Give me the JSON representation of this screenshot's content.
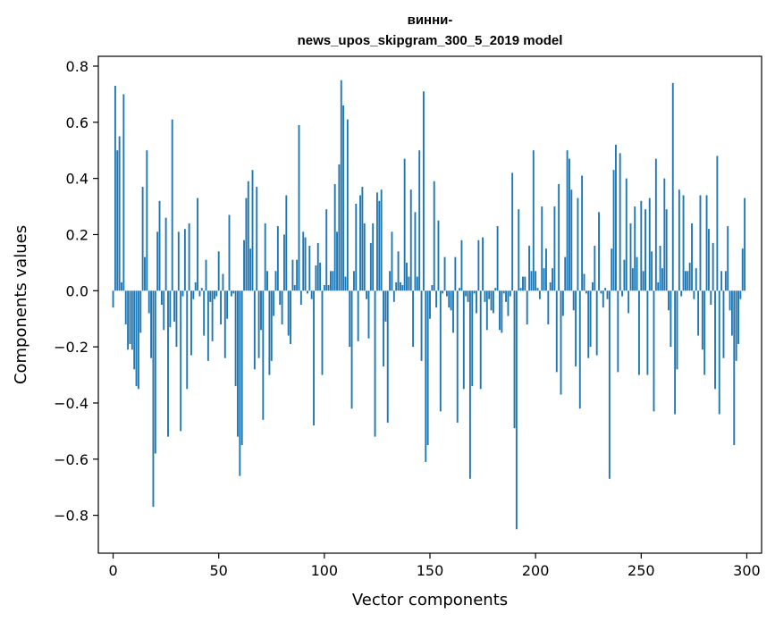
{
  "chart_data": {
    "type": "bar",
    "title_lines": [
      "винни-",
      "news_upos_skipgram_300_5_2019 model"
    ],
    "xlabel": "Vector components",
    "ylabel": "Components values",
    "xlim": [
      -7,
      307
    ],
    "ylim": [
      -0.935,
      0.835
    ],
    "xticks": [
      0,
      50,
      100,
      150,
      200,
      250,
      300
    ],
    "xtick_labels": [
      "0",
      "50",
      "100",
      "150",
      "200",
      "250",
      "300"
    ],
    "yticks": [
      -0.8,
      -0.6,
      -0.4,
      -0.2,
      0.0,
      0.2,
      0.4,
      0.6,
      0.8
    ],
    "ytick_labels": [
      "−0.8",
      "−0.6",
      "−0.4",
      "−0.2",
      "0.0",
      "0.2",
      "0.4",
      "0.6",
      "0.8"
    ],
    "grid": false,
    "bar_color": "#1f77b4",
    "x": [
      0,
      1,
      2,
      3,
      4,
      5,
      6,
      7,
      8,
      9,
      10,
      11,
      12,
      13,
      14,
      15,
      16,
      17,
      18,
      19,
      20,
      21,
      22,
      23,
      24,
      25,
      26,
      27,
      28,
      29,
      30,
      31,
      32,
      33,
      34,
      35,
      36,
      37,
      38,
      39,
      40,
      41,
      42,
      43,
      44,
      45,
      46,
      47,
      48,
      49,
      50,
      51,
      52,
      53,
      54,
      55,
      56,
      57,
      58,
      59,
      60,
      61,
      62,
      63,
      64,
      65,
      66,
      67,
      68,
      69,
      70,
      71,
      72,
      73,
      74,
      75,
      76,
      77,
      78,
      79,
      80,
      81,
      82,
      83,
      84,
      85,
      86,
      87,
      88,
      89,
      90,
      91,
      92,
      93,
      94,
      95,
      96,
      97,
      98,
      99,
      100,
      101,
      102,
      103,
      104,
      105,
      106,
      107,
      108,
      109,
      110,
      111,
      112,
      113,
      114,
      115,
      116,
      117,
      118,
      119,
      120,
      121,
      122,
      123,
      124,
      125,
      126,
      127,
      128,
      129,
      130,
      131,
      132,
      133,
      134,
      135,
      136,
      137,
      138,
      139,
      140,
      141,
      142,
      143,
      144,
      145,
      146,
      147,
      148,
      149,
      150,
      151,
      152,
      153,
      154,
      155,
      156,
      157,
      158,
      159,
      160,
      161,
      162,
      163,
      164,
      165,
      166,
      167,
      168,
      169,
      170,
      171,
      172,
      173,
      174,
      175,
      176,
      177,
      178,
      179,
      180,
      181,
      182,
      183,
      184,
      185,
      186,
      187,
      188,
      189,
      190,
      191,
      192,
      193,
      194,
      195,
      196,
      197,
      198,
      199,
      200,
      201,
      202,
      203,
      204,
      205,
      206,
      207,
      208,
      209,
      210,
      211,
      212,
      213,
      214,
      215,
      216,
      217,
      218,
      219,
      220,
      221,
      222,
      223,
      224,
      225,
      226,
      227,
      228,
      229,
      230,
      231,
      232,
      233,
      234,
      235,
      236,
      237,
      238,
      239,
      240,
      241,
      242,
      243,
      244,
      245,
      246,
      247,
      248,
      249,
      250,
      251,
      252,
      253,
      254,
      255,
      256,
      257,
      258,
      259,
      260,
      261,
      262,
      263,
      264,
      265,
      266,
      267,
      268,
      269,
      270,
      271,
      272,
      273,
      274,
      275,
      276,
      277,
      278,
      279,
      280,
      281,
      282,
      283,
      284,
      285,
      286,
      287,
      288,
      289,
      290,
      291,
      292,
      293,
      294,
      295,
      296,
      297,
      298,
      299
    ],
    "values": [
      -0.06,
      0.73,
      0.5,
      0.55,
      0.03,
      0.7,
      -0.12,
      -0.21,
      -0.19,
      -0.21,
      -0.28,
      -0.34,
      -0.35,
      -0.15,
      0.37,
      0.12,
      0.5,
      -0.08,
      -0.24,
      -0.77,
      -0.58,
      0.21,
      0.32,
      -0.05,
      -0.14,
      0.26,
      -0.52,
      -0.13,
      0.61,
      -0.11,
      -0.2,
      0.21,
      -0.5,
      -0.02,
      0.22,
      -0.35,
      0.24,
      -0.23,
      -0.03,
      0.03,
      0.33,
      -0.02,
      0.01,
      -0.16,
      0.11,
      -0.25,
      -0.04,
      -0.18,
      -0.03,
      -0.02,
      0.14,
      -0.12,
      0.06,
      -0.24,
      -0.1,
      0.27,
      -0.02,
      -0.01,
      -0.34,
      -0.52,
      -0.66,
      -0.55,
      0.18,
      0.33,
      0.39,
      0.15,
      0.43,
      -0.28,
      0.37,
      -0.24,
      -0.14,
      -0.46,
      0.24,
      0.07,
      -0.3,
      -0.25,
      -0.09,
      0.07,
      0.23,
      -0.05,
      -0.12,
      0.2,
      0.34,
      -0.16,
      -0.19,
      0.11,
      0.02,
      0.11,
      0.59,
      -0.05,
      0.21,
      0.19,
      -0.01,
      0.16,
      -0.03,
      -0.48,
      0.09,
      0.17,
      0.1,
      -0.3,
      0.02,
      0.29,
      0.02,
      0.07,
      0.07,
      0.38,
      0.21,
      0.45,
      0.75,
      0.66,
      0.05,
      0.61,
      -0.2,
      -0.42,
      0.07,
      0.31,
      -0.18,
      0.34,
      0.37,
      0.24,
      -0.03,
      -0.17,
      0.17,
      0.24,
      -0.52,
      0.35,
      0.32,
      0.36,
      -0.27,
      -0.11,
      -0.47,
      0.07,
      0.21,
      -0.04,
      0.03,
      0.14,
      0.03,
      0.02,
      0.47,
      0.1,
      0.05,
      0.36,
      -0.2,
      0.28,
      0.05,
      0.5,
      -0.25,
      0.71,
      -0.61,
      -0.55,
      -0.1,
      0.02,
      0.39,
      -0.06,
      0.25,
      -0.43,
      -0.01,
      0.12,
      -0.02,
      -0.06,
      -0.07,
      -0.15,
      0.12,
      -0.47,
      0.01,
      0.18,
      -0.35,
      -0.02,
      -0.04,
      -0.67,
      -0.34,
      -0.01,
      -0.08,
      0.18,
      -0.35,
      0.19,
      -0.04,
      -0.14,
      -0.03,
      -0.07,
      -0.08,
      0.01,
      0.23,
      -0.14,
      -0.15,
      -0.01,
      -0.04,
      -0.09,
      -0.02,
      0.42,
      -0.49,
      -0.85,
      0.29,
      0.01,
      0.05,
      0.05,
      -0.12,
      0.16,
      0.07,
      0.5,
      0.07,
      0.01,
      -0.03,
      0.3,
      0.08,
      0.15,
      -0.12,
      0.03,
      0.08,
      0.3,
      -0.29,
      0.38,
      -0.37,
      -0.09,
      0.12,
      0.5,
      0.47,
      0.36,
      -0.07,
      -0.27,
      0.33,
      -0.42,
      0.41,
      0.06,
      -0.01,
      -0.24,
      -0.2,
      0.03,
      0.16,
      -0.23,
      0.28,
      -0.01,
      -0.06,
      0.01,
      -0.03,
      -0.67,
      0.15,
      0.43,
      0.52,
      -0.29,
      0.49,
      -0.02,
      0.11,
      0.4,
      -0.08,
      0.24,
      0.08,
      0.3,
      0.12,
      -0.3,
      0.32,
      0.07,
      0.29,
      -0.3,
      0.33,
      0.14,
      -0.43,
      0.47,
      0.03,
      0.16,
      0.08,
      0.4,
      0.29,
      -0.07,
      -0.2,
      0.74,
      -0.44,
      -0.28,
      0.36,
      -0.02,
      0.34,
      0.07,
      0.07,
      0.1,
      0.24,
      -0.03,
      0.08,
      -0.16,
      0.34,
      -0.21,
      -0.3,
      0.34,
      0.22,
      -0.05,
      0.17,
      -0.35,
      0.48,
      -0.44,
      0.07,
      -0.24,
      0.07,
      0.23,
      -0.07,
      -0.16,
      -0.55,
      -0.25,
      -0.19,
      -0.03,
      0.15,
      0.33
    ]
  }
}
